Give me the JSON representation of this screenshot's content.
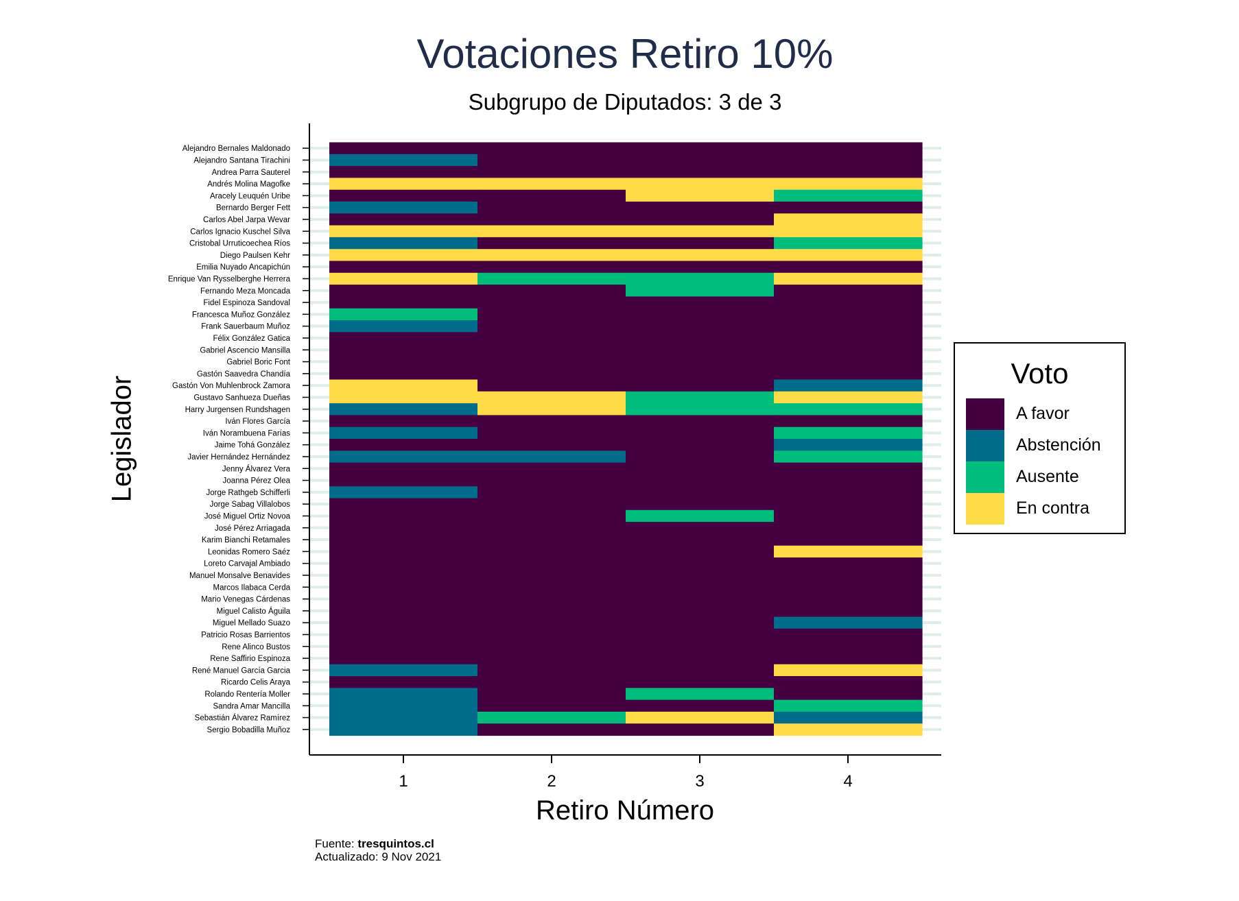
{
  "title": "Votaciones Retiro 10%",
  "subtitle": "Subgrupo de Diputados: 3 de 3",
  "source": {
    "prefix": "Fuente: ",
    "site": "tresquintos.cl",
    "updated": "Actualizado: 9 Nov 2021"
  },
  "colors": {
    "A favor": "#440041",
    "Abstención": "#006b8a",
    "Ausente": "#00bd7e",
    "En contra": "#fddc47",
    "gridline": "#dfeee9",
    "axis": "#000000",
    "title": "#1f2d4a"
  },
  "legend": {
    "title": "Voto",
    "items": [
      "A favor",
      "Abstención",
      "Ausente",
      "En contra"
    ]
  },
  "chart_data": {
    "type": "heatmap",
    "title": "Votaciones Retiro 10%",
    "subtitle": "Subgrupo de Diputados: 3 de 3",
    "xlabel": "Retiro Número",
    "ylabel": "Legislador",
    "x": [
      1,
      2,
      3,
      4
    ],
    "legend_title": "Voto",
    "legend_position": "right",
    "categories": [
      "A favor",
      "Abstención",
      "Ausente",
      "En contra"
    ],
    "rows": [
      {
        "name": "Alejandro Bernales Maldonado",
        "votes": [
          "A favor",
          "A favor",
          "A favor",
          "A favor"
        ]
      },
      {
        "name": "Alejandro Santana Tirachini",
        "votes": [
          "Abstención",
          "A favor",
          "A favor",
          "A favor"
        ]
      },
      {
        "name": "Andrea Parra Sauterel",
        "votes": [
          "A favor",
          "A favor",
          "A favor",
          "A favor"
        ]
      },
      {
        "name": "Andrés Molina Magofke",
        "votes": [
          "En contra",
          "En contra",
          "En contra",
          "En contra"
        ]
      },
      {
        "name": "Aracely Leuquén Uribe",
        "votes": [
          "A favor",
          "A favor",
          "En contra",
          "Ausente"
        ]
      },
      {
        "name": "Bernardo Berger Fett",
        "votes": [
          "Abstención",
          "A favor",
          "A favor",
          "A favor"
        ]
      },
      {
        "name": "Carlos Abel Jarpa Wevar",
        "votes": [
          "A favor",
          "A favor",
          "A favor",
          "En contra"
        ]
      },
      {
        "name": "Carlos Ignacio Kuschel Silva",
        "votes": [
          "En contra",
          "En contra",
          "En contra",
          "En contra"
        ]
      },
      {
        "name": "Cristobal Urruticoechea Ríos",
        "votes": [
          "Abstención",
          "A favor",
          "A favor",
          "Ausente"
        ]
      },
      {
        "name": "Diego Paulsen Kehr",
        "votes": [
          "En contra",
          "En contra",
          "En contra",
          "En contra"
        ]
      },
      {
        "name": "Emilia Nuyado Ancapichún",
        "votes": [
          "A favor",
          "A favor",
          "A favor",
          "A favor"
        ]
      },
      {
        "name": "Enrique Van Rysselberghe Herrera",
        "votes": [
          "En contra",
          "Ausente",
          "Ausente",
          "En contra"
        ]
      },
      {
        "name": "Fernando Meza Moncada",
        "votes": [
          "A favor",
          "A favor",
          "Ausente",
          "A favor"
        ]
      },
      {
        "name": "Fidel Espinoza Sandoval",
        "votes": [
          "A favor",
          "A favor",
          "A favor",
          "A favor"
        ]
      },
      {
        "name": "Francesca Muñoz González",
        "votes": [
          "Ausente",
          "A favor",
          "A favor",
          "A favor"
        ]
      },
      {
        "name": "Frank Sauerbaum Muñoz",
        "votes": [
          "Abstención",
          "A favor",
          "A favor",
          "A favor"
        ]
      },
      {
        "name": "Félix González Gatica",
        "votes": [
          "A favor",
          "A favor",
          "A favor",
          "A favor"
        ]
      },
      {
        "name": "Gabriel Ascencio Mansilla",
        "votes": [
          "A favor",
          "A favor",
          "A favor",
          "A favor"
        ]
      },
      {
        "name": "Gabriel Boric Font",
        "votes": [
          "A favor",
          "A favor",
          "A favor",
          "A favor"
        ]
      },
      {
        "name": "Gastón Saavedra Chandía",
        "votes": [
          "A favor",
          "A favor",
          "A favor",
          "A favor"
        ]
      },
      {
        "name": "Gastón Von Muhlenbrock Zamora",
        "votes": [
          "En contra",
          "A favor",
          "A favor",
          "Abstención"
        ]
      },
      {
        "name": "Gustavo Sanhueza Dueñas",
        "votes": [
          "En contra",
          "En contra",
          "Ausente",
          "En contra"
        ]
      },
      {
        "name": "Harry Jurgensen Rundshagen",
        "votes": [
          "Abstención",
          "En contra",
          "Ausente",
          "Ausente"
        ]
      },
      {
        "name": "Iván Flores García",
        "votes": [
          "A favor",
          "A favor",
          "A favor",
          "A favor"
        ]
      },
      {
        "name": "Iván Norambuena Farías",
        "votes": [
          "Abstención",
          "A favor",
          "A favor",
          "Ausente"
        ]
      },
      {
        "name": "Jaime Tohá González",
        "votes": [
          "A favor",
          "A favor",
          "A favor",
          "Abstención"
        ]
      },
      {
        "name": "Javier Hernández Hernández",
        "votes": [
          "Abstención",
          "Abstención",
          "A favor",
          "Ausente"
        ]
      },
      {
        "name": "Jenny Álvarez Vera",
        "votes": [
          "A favor",
          "A favor",
          "A favor",
          "A favor"
        ]
      },
      {
        "name": "Joanna Pérez Olea",
        "votes": [
          "A favor",
          "A favor",
          "A favor",
          "A favor"
        ]
      },
      {
        "name": "Jorge Rathgeb Schifferli",
        "votes": [
          "Abstención",
          "A favor",
          "A favor",
          "A favor"
        ]
      },
      {
        "name": "Jorge Sabag Villalobos",
        "votes": [
          "A favor",
          "A favor",
          "A favor",
          "A favor"
        ]
      },
      {
        "name": "José Miguel Ortiz Novoa",
        "votes": [
          "A favor",
          "A favor",
          "Ausente",
          "A favor"
        ]
      },
      {
        "name": "José Pérez Arriagada",
        "votes": [
          "A favor",
          "A favor",
          "A favor",
          "A favor"
        ]
      },
      {
        "name": "Karim Bianchi Retamales",
        "votes": [
          "A favor",
          "A favor",
          "A favor",
          "A favor"
        ]
      },
      {
        "name": "Leonidas Romero Saéz",
        "votes": [
          "A favor",
          "A favor",
          "A favor",
          "En contra"
        ]
      },
      {
        "name": "Loreto Carvajal Ambiado",
        "votes": [
          "A favor",
          "A favor",
          "A favor",
          "A favor"
        ]
      },
      {
        "name": "Manuel Monsalve Benavides",
        "votes": [
          "A favor",
          "A favor",
          "A favor",
          "A favor"
        ]
      },
      {
        "name": "Marcos Ilabaca Cerda",
        "votes": [
          "A favor",
          "A favor",
          "A favor",
          "A favor"
        ]
      },
      {
        "name": "Mario Venegas Cárdenas",
        "votes": [
          "A favor",
          "A favor",
          "A favor",
          "A favor"
        ]
      },
      {
        "name": "Miguel Calisto Águila",
        "votes": [
          "A favor",
          "A favor",
          "A favor",
          "A favor"
        ]
      },
      {
        "name": "Miguel Mellado Suazo",
        "votes": [
          "A favor",
          "A favor",
          "A favor",
          "Abstención"
        ]
      },
      {
        "name": "Patricio Rosas Barrientos",
        "votes": [
          "A favor",
          "A favor",
          "A favor",
          "A favor"
        ]
      },
      {
        "name": "Rene Alinco Bustos",
        "votes": [
          "A favor",
          "A favor",
          "A favor",
          "A favor"
        ]
      },
      {
        "name": "Rene Saffirio Espinoza",
        "votes": [
          "A favor",
          "A favor",
          "A favor",
          "A favor"
        ]
      },
      {
        "name": "René Manuel García Garcia",
        "votes": [
          "Abstención",
          "A favor",
          "A favor",
          "En contra"
        ]
      },
      {
        "name": "Ricardo Celis Araya",
        "votes": [
          "A favor",
          "A favor",
          "A favor",
          "A favor"
        ]
      },
      {
        "name": "Rolando Rentería Moller",
        "votes": [
          "Abstención",
          "A favor",
          "Ausente",
          "A favor"
        ]
      },
      {
        "name": "Sandra Amar Mancilla",
        "votes": [
          "Abstención",
          "A favor",
          "A favor",
          "Ausente"
        ]
      },
      {
        "name": "Sebastián Álvarez Ramírez",
        "votes": [
          "Abstención",
          "Ausente",
          "En contra",
          "Abstención"
        ]
      },
      {
        "name": "Sergio Bobadilla Muñoz",
        "votes": [
          "Abstención",
          "A favor",
          "A favor",
          "En contra"
        ]
      }
    ]
  }
}
